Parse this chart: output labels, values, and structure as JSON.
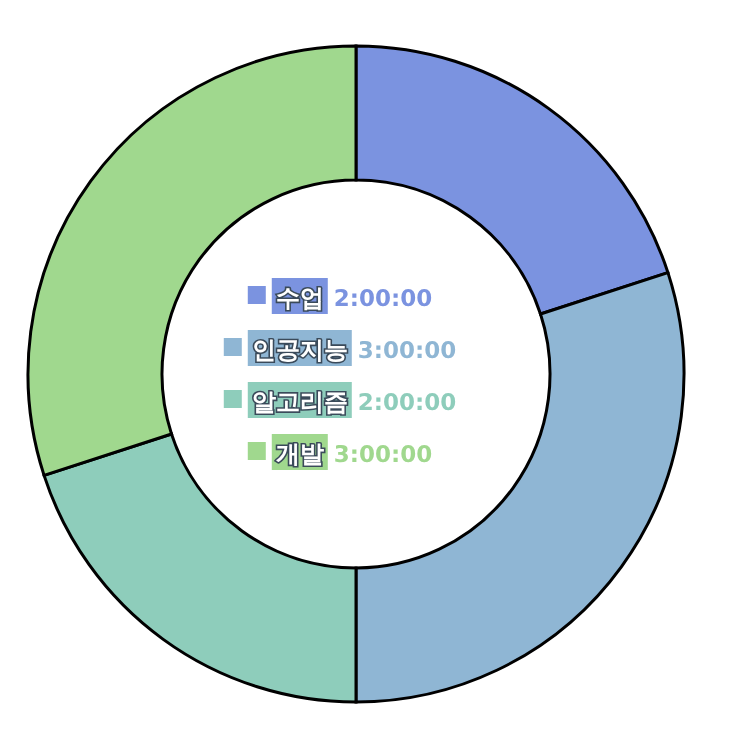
{
  "chart_data": {
    "type": "donut",
    "categories": [
      "수업",
      "인공지능",
      "알고리즘",
      "개발"
    ],
    "values": [
      2,
      3,
      2,
      3
    ],
    "value_labels": [
      "2:00:00",
      "3:00:00",
      "2:00:00",
      "3:00:00"
    ],
    "colors": [
      "#7b93e0",
      "#8fb6d4",
      "#8ecdbb",
      "#a0d88e"
    ],
    "legend": "center"
  }
}
